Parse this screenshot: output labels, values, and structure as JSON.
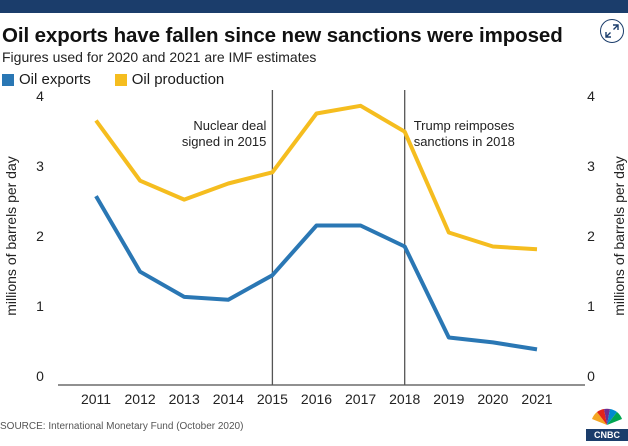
{
  "header": {
    "title": "Oil exports have fallen since new sanctions were imposed",
    "subtitle": "Figures used for 2020 and 2021 are IMF estimates",
    "expand_icon": "expand-arrows-icon"
  },
  "footer": {
    "source": "SOURCE: International Monetary Fund (October 2020)",
    "logo_text": "CNBC"
  },
  "colors": {
    "top_bar": "#1b3d6b",
    "exports": "#2a77b4",
    "production": "#f5bd1f",
    "vline": "#555555"
  },
  "chart_data": {
    "type": "line",
    "x": [
      "2011",
      "2012",
      "2013",
      "2014",
      "2015",
      "2016",
      "2017",
      "2018",
      "2019",
      "2020",
      "2021"
    ],
    "series": [
      {
        "name": "Oil exports",
        "values": [
          2.57,
          1.49,
          1.13,
          1.09,
          1.44,
          2.15,
          2.15,
          1.85,
          0.55,
          0.48,
          0.38
        ]
      },
      {
        "name": "Oil production",
        "values": [
          3.65,
          2.79,
          2.52,
          2.75,
          2.91,
          3.75,
          3.86,
          3.49,
          2.05,
          1.85,
          1.81
        ]
      }
    ],
    "ylabel_left": "millions of barrels per day",
    "ylabel_right": "millions of barrels per day",
    "yticks": [
      0,
      1,
      2,
      3,
      4
    ],
    "ylim": [
      0,
      4
    ],
    "annotations": [
      {
        "x": "2015",
        "text_lines": [
          "Nuclear deal",
          "signed in 2015"
        ],
        "side": "left"
      },
      {
        "x": "2018",
        "text_lines": [
          "Trump reimposes",
          "sanctions in 2018"
        ],
        "side": "right"
      }
    ],
    "grid": false,
    "legend_position": "top-left"
  }
}
